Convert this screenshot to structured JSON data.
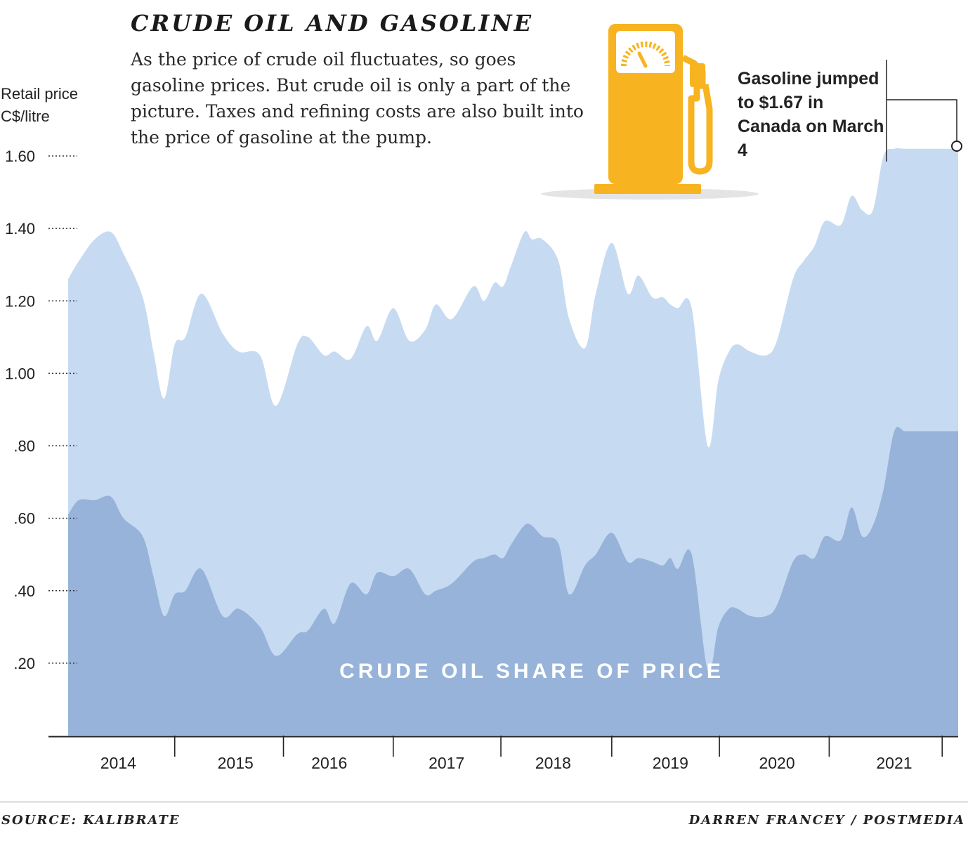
{
  "title": "CRUDE OIL AND GASOLINE",
  "intro": "As the price of crude oil fluctuates, so goes gasoline prices. But crude oil is only a part of the picture. Taxes and refining costs are also built into the price of gasoline at the pump.",
  "y_unit_line1": "Retail price",
  "y_unit_line2": "C$/litre",
  "callout": "Gasoline jumped to $1.67 in Canada on March 4",
  "inner_label": "CRUDE OIL SHARE OF PRICE",
  "source": "SOURCE: KALIBRATE",
  "credit": "DARREN FRANCEY / POSTMEDIA",
  "icon": "gas-pump-icon",
  "colors": {
    "gasoline": "#c6dbf2",
    "crude": "#97b3da",
    "pump": "#f7b320"
  },
  "chart_data": {
    "type": "area",
    "ylim": [
      0,
      1.65
    ],
    "ytick_values": [
      0.2,
      0.4,
      0.6,
      0.8,
      1.0,
      1.2,
      1.4,
      1.6
    ],
    "ytick_labels": [
      ".20",
      ".40",
      ".60",
      ".80",
      "1.00",
      "1.20",
      "1.40",
      "1.60"
    ],
    "xlim": [
      2013.6,
      2021.95
    ],
    "year_labels": [
      "2014",
      "2015",
      "2016",
      "2017",
      "2018",
      "2019",
      "2020",
      "2021"
    ],
    "year_centers": [
      2014.07,
      2015.17,
      2016.05,
      2017.15,
      2018.15,
      2019.25,
      2020.25,
      2021.35
    ],
    "year_dividers": [
      2014.6,
      2015.62,
      2016.65,
      2017.66,
      2018.7,
      2019.71,
      2020.74,
      2021.8
    ],
    "series": [
      {
        "name": "Gasoline",
        "x": [
          2013.6,
          2013.7,
          2013.85,
          2014.0,
          2014.12,
          2014.3,
          2014.4,
          2014.5,
          2014.6,
          2014.7,
          2014.85,
          2015.05,
          2015.2,
          2015.4,
          2015.55,
          2015.75,
          2015.85,
          2016.0,
          2016.1,
          2016.25,
          2016.4,
          2016.5,
          2016.65,
          2016.8,
          2016.95,
          2017.05,
          2017.2,
          2017.4,
          2017.5,
          2017.6,
          2017.68,
          2017.76,
          2017.88,
          2017.95,
          2018.05,
          2018.2,
          2018.3,
          2018.45,
          2018.55,
          2018.7,
          2018.85,
          2018.95,
          2019.08,
          2019.18,
          2019.25,
          2019.32,
          2019.45,
          2019.6,
          2019.7,
          2019.8,
          2019.88,
          2020.0,
          2020.15,
          2020.25,
          2020.4,
          2020.5,
          2020.6,
          2020.7,
          2020.85,
          2020.95,
          2021.05,
          2021.15,
          2021.25,
          2021.35,
          2021.45,
          2021.55,
          2021.65,
          2021.75,
          2021.85,
          2021.95
        ],
        "values": [
          1.26,
          1.31,
          1.37,
          1.39,
          1.33,
          1.21,
          1.06,
          0.93,
          1.08,
          1.1,
          1.22,
          1.11,
          1.06,
          1.05,
          0.91,
          1.08,
          1.1,
          1.05,
          1.06,
          1.04,
          1.13,
          1.09,
          1.18,
          1.09,
          1.12,
          1.19,
          1.15,
          1.24,
          1.2,
          1.25,
          1.24,
          1.3,
          1.39,
          1.37,
          1.37,
          1.31,
          1.15,
          1.07,
          1.22,
          1.36,
          1.22,
          1.27,
          1.21,
          1.21,
          1.19,
          1.18,
          1.18,
          0.8,
          0.98,
          1.06,
          1.08,
          1.06,
          1.05,
          1.09,
          1.26,
          1.31,
          1.35,
          1.42,
          1.41,
          1.49,
          1.45,
          1.45,
          1.6,
          1.62,
          1.62,
          1.62,
          1.62,
          1.62,
          1.62,
          1.62
        ]
      },
      {
        "name": "Crude oil",
        "x": [
          2013.6,
          2013.7,
          2013.85,
          2014.0,
          2014.12,
          2014.3,
          2014.4,
          2014.5,
          2014.6,
          2014.7,
          2014.85,
          2015.05,
          2015.2,
          2015.4,
          2015.55,
          2015.75,
          2015.85,
          2016.0,
          2016.1,
          2016.25,
          2016.4,
          2016.5,
          2016.65,
          2016.8,
          2016.95,
          2017.05,
          2017.2,
          2017.4,
          2017.5,
          2017.6,
          2017.68,
          2017.76,
          2017.88,
          2017.95,
          2018.05,
          2018.2,
          2018.3,
          2018.45,
          2018.55,
          2018.7,
          2018.85,
          2018.95,
          2019.08,
          2019.18,
          2019.25,
          2019.32,
          2019.45,
          2019.6,
          2019.7,
          2019.8,
          2019.88,
          2020.0,
          2020.15,
          2020.25,
          2020.4,
          2020.5,
          2020.6,
          2020.7,
          2020.85,
          2020.95,
          2021.05,
          2021.15,
          2021.25,
          2021.35,
          2021.45,
          2021.55,
          2021.65,
          2021.75,
          2021.85,
          2021.95
        ],
        "values": [
          0.61,
          0.65,
          0.65,
          0.66,
          0.6,
          0.55,
          0.44,
          0.33,
          0.39,
          0.4,
          0.46,
          0.33,
          0.35,
          0.3,
          0.22,
          0.28,
          0.29,
          0.35,
          0.31,
          0.42,
          0.39,
          0.45,
          0.44,
          0.46,
          0.39,
          0.4,
          0.42,
          0.48,
          0.49,
          0.5,
          0.49,
          0.53,
          0.58,
          0.58,
          0.55,
          0.53,
          0.39,
          0.47,
          0.5,
          0.56,
          0.48,
          0.49,
          0.48,
          0.47,
          0.49,
          0.46,
          0.5,
          0.18,
          0.3,
          0.35,
          0.35,
          0.33,
          0.33,
          0.36,
          0.48,
          0.5,
          0.49,
          0.55,
          0.54,
          0.63,
          0.55,
          0.58,
          0.68,
          0.84,
          0.84,
          0.84,
          0.84,
          0.84,
          0.84,
          0.84
        ]
      }
    ]
  }
}
